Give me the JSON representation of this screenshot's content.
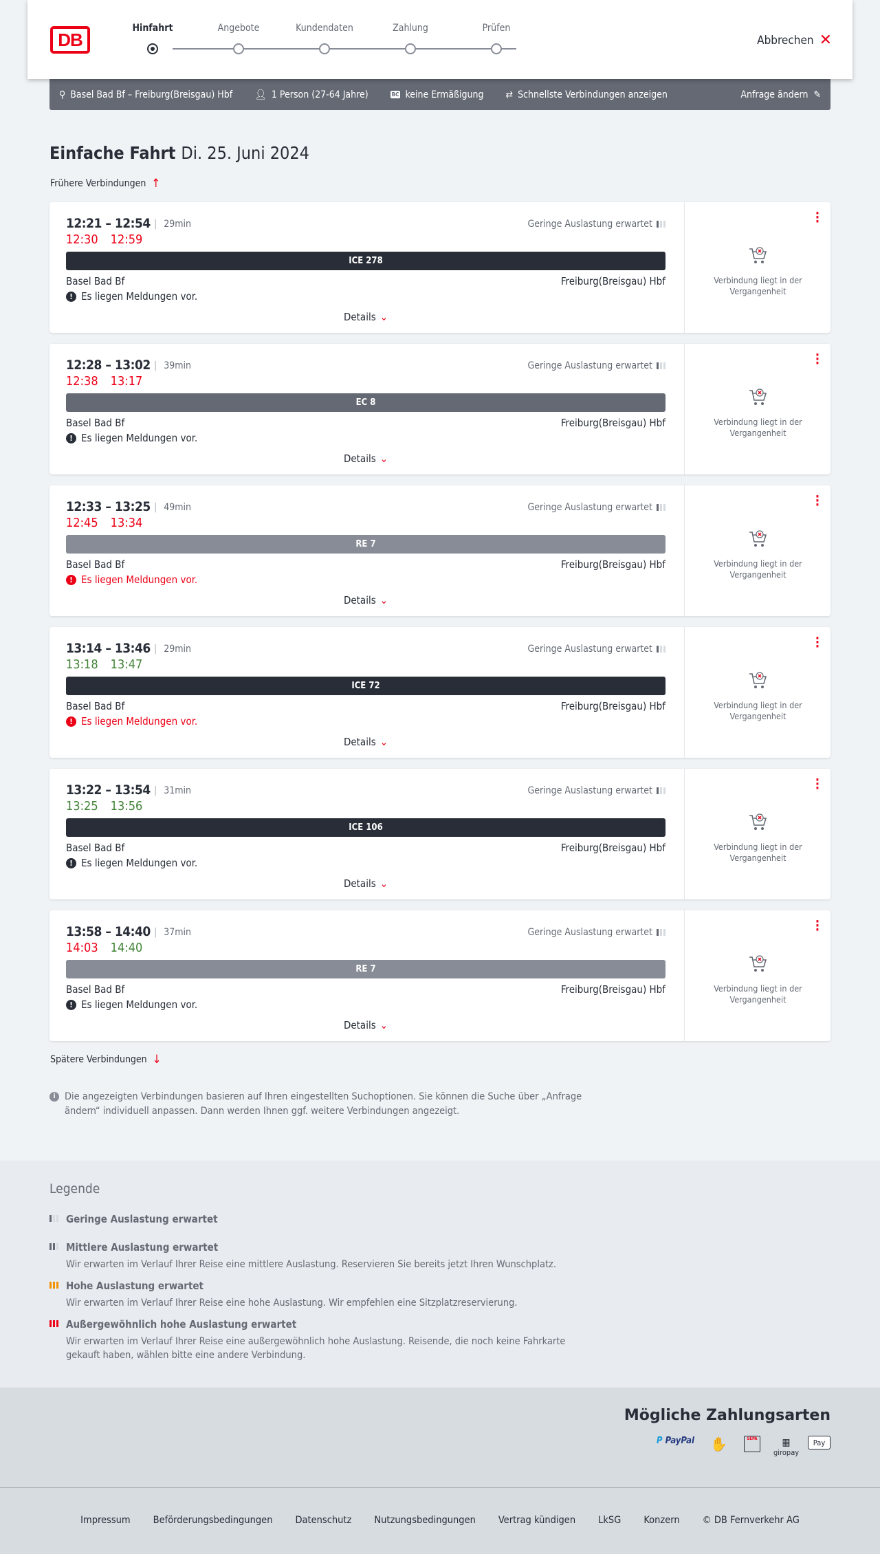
{
  "header": {
    "logo": "DB",
    "steps": [
      "Hinfahrt",
      "Angebote",
      "Kundendaten",
      "Zahlung",
      "Prüfen"
    ],
    "active_step": 0,
    "cancel": "Abbrechen"
  },
  "summary": {
    "route": "Basel Bad Bf – Freiburg(Breisgau) Hbf",
    "persons": "1 Person (27-64 Jahre)",
    "bc": "BC",
    "discount": "keine Ermäßigung",
    "fastest": "Schnellste Verbindungen anzeigen",
    "edit": "Anfrage ändern"
  },
  "title": {
    "type": "Einfache Fahrt",
    "date": "Di. 25. Juni 2024"
  },
  "earlier": "Frühere Verbindungen",
  "later": "Spätere Verbindungen",
  "colors": {
    "accent": "#ec0016",
    "delay": "#ec0016",
    "ontime": "#408335",
    "ice": "#282d37",
    "ec": "#646973",
    "re": "#878c96"
  },
  "connections": [
    {
      "times": "12:21 – 12:54",
      "duration": "29min",
      "rt_dep": "12:30",
      "rt_arr": "12:59",
      "dep_color": "#ec0016",
      "arr_color": "#ec0016",
      "load": "Geringe Auslastung erwartet",
      "train": "ICE 278",
      "train_color": "#282d37",
      "from": "Basel Bad Bf",
      "to": "Freiburg(Breisgau) Hbf",
      "message": "Es liegen Meldungen vor.",
      "msg_color": "#282d37",
      "details": "Details",
      "status": "Verbindung liegt in der Vergangenheit"
    },
    {
      "times": "12:28 – 13:02",
      "duration": "39min",
      "rt_dep": "12:38",
      "rt_arr": "13:17",
      "dep_color": "#ec0016",
      "arr_color": "#ec0016",
      "load": "Geringe Auslastung erwartet",
      "train": "EC 8",
      "train_color": "#646973",
      "from": "Basel Bad Bf",
      "to": "Freiburg(Breisgau) Hbf",
      "message": "Es liegen Meldungen vor.",
      "msg_color": "#282d37",
      "details": "Details",
      "status": "Verbindung liegt in der Vergangenheit"
    },
    {
      "times": "12:33 – 13:25",
      "duration": "49min",
      "rt_dep": "12:45",
      "rt_arr": "13:34",
      "dep_color": "#ec0016",
      "arr_color": "#ec0016",
      "load": "Geringe Auslastung erwartet",
      "train": "RE 7",
      "train_color": "#878c96",
      "from": "Basel Bad Bf",
      "to": "Freiburg(Breisgau) Hbf",
      "message": "Es liegen Meldungen vor.",
      "msg_color": "#ec0016",
      "details": "Details",
      "status": "Verbindung liegt in der Vergangenheit"
    },
    {
      "times": "13:14 – 13:46",
      "duration": "29min",
      "rt_dep": "13:18",
      "rt_arr": "13:47",
      "dep_color": "#408335",
      "arr_color": "#408335",
      "load": "Geringe Auslastung erwartet",
      "train": "ICE 72",
      "train_color": "#282d37",
      "from": "Basel Bad Bf",
      "to": "Freiburg(Breisgau) Hbf",
      "message": "Es liegen Meldungen vor.",
      "msg_color": "#ec0016",
      "details": "Details",
      "status": "Verbindung liegt in der Vergangenheit"
    },
    {
      "times": "13:22 – 13:54",
      "duration": "31min",
      "rt_dep": "13:25",
      "rt_arr": "13:56",
      "dep_color": "#408335",
      "arr_color": "#408335",
      "load": "Geringe Auslastung erwartet",
      "train": "ICE 106",
      "train_color": "#282d37",
      "from": "Basel Bad Bf",
      "to": "Freiburg(Breisgau) Hbf",
      "message": "Es liegen Meldungen vor.",
      "msg_color": "#282d37",
      "details": "Details",
      "status": "Verbindung liegt in der Vergangenheit"
    },
    {
      "times": "13:58 – 14:40",
      "duration": "37min",
      "rt_dep": "14:03",
      "rt_arr": "14:40",
      "dep_color": "#ec0016",
      "arr_color": "#408335",
      "load": "Geringe Auslastung erwartet",
      "train": "RE 7",
      "train_color": "#878c96",
      "from": "Basel Bad Bf",
      "to": "Freiburg(Breisgau) Hbf",
      "message": "Es liegen Meldungen vor.",
      "msg_color": "#282d37",
      "details": "Details",
      "status": "Verbindung liegt in der Vergangenheit"
    }
  ],
  "info": "Die angezeigten Verbindungen basieren auf Ihren eingestellten Suchoptionen. Sie können die Suche über „Anfrage ändern“ individuell anpassen. Dann werden Ihnen ggf. weitere Verbindungen angezeigt.",
  "legend": {
    "title": "Legende",
    "items": [
      {
        "title": "Geringe Auslastung erwartet",
        "desc": "",
        "level": 1,
        "color": "#646973"
      },
      {
        "title": "Mittlere Auslastung erwartet",
        "desc": "Wir erwarten im Verlauf Ihrer Reise eine mittlere Auslastung. Reservieren Sie bereits jetzt Ihren Wunschplatz.",
        "level": 2,
        "color": "#646973"
      },
      {
        "title": "Hohe Auslastung erwartet",
        "desc": "Wir erwarten im Verlauf Ihrer Reise eine hohe Auslastung. Wir empfehlen eine Sitzplatzreservierung.",
        "level": 3,
        "color": "#f39200"
      },
      {
        "title": "Außergewöhnlich hohe Auslastung erwartet",
        "desc": "Wir erwarten im Verlauf Ihrer Reise eine außergewöhnlich hohe Auslastung. Reisende, die noch keine Fahrkarte gekauft haben, wählen bitte eine andere Verbindung.",
        "level": 4,
        "color": "#ec0016"
      }
    ]
  },
  "payment": {
    "title": "Mögliche Zahlungsarten",
    "methods": [
      "PayPal",
      "Kreditkarte",
      "SEPA",
      "giropay",
      "Pay"
    ]
  },
  "footer": [
    "Impressum",
    "Beförderungsbedingungen",
    "Datenschutz",
    "Nutzungsbedingungen",
    "Vertrag kündigen",
    "LkSG",
    "Konzern",
    "© DB Fernverkehr AG"
  ]
}
